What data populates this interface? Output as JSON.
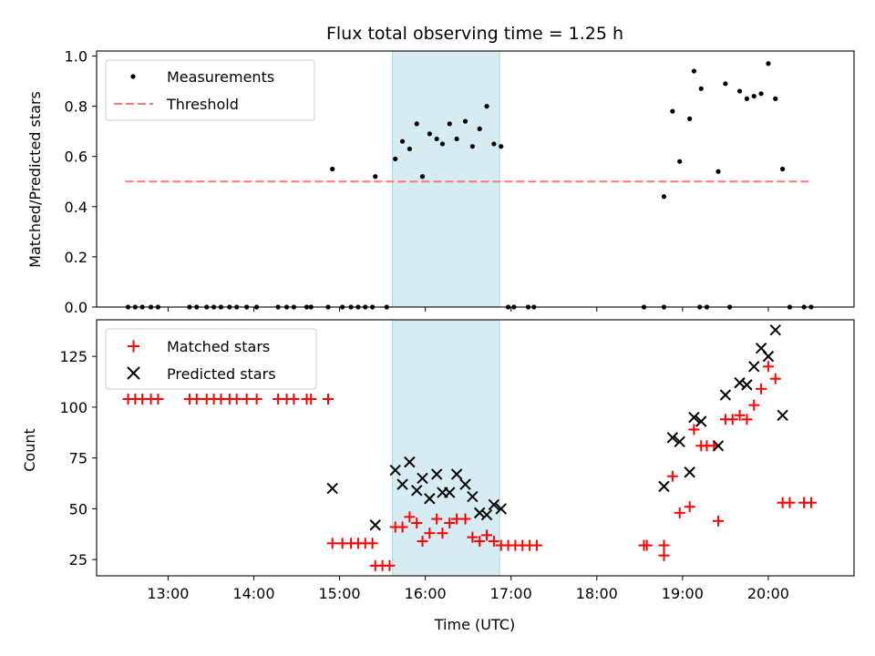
{
  "chart_data": [
    {
      "type": "scatter",
      "title": "Flux total observing time = 1.25 h",
      "xlabel": "",
      "ylabel": "Matched/Predicted stars",
      "xlim": [
        "12:10",
        "21:00"
      ],
      "ylim": [
        0,
        1.02
      ],
      "xticks": [
        "13:00",
        "14:00",
        "15:00",
        "16:00",
        "17:00",
        "18:00",
        "19:00",
        "20:00"
      ],
      "yticks": [
        "0.0",
        "0.2",
        "0.4",
        "0.6",
        "0.8",
        "1.0"
      ],
      "shaded_interval": [
        "15:37",
        "16:52"
      ],
      "legend": {
        "position": "upper-left",
        "measurements_label": "Measurements",
        "threshold_label": "Threshold"
      },
      "threshold": {
        "value": 0.5,
        "x_start": "12:30",
        "x_end": "20:30",
        "color": "#ff7777"
      },
      "series": [
        {
          "name": "Measurements",
          "color": "#000000",
          "points": [
            [
              "12:32",
              0.0
            ],
            [
              "12:37",
              0.0
            ],
            [
              "12:42",
              0.0
            ],
            [
              "12:48",
              0.0
            ],
            [
              "12:53",
              0.0
            ],
            [
              "13:15",
              0.0
            ],
            [
              "13:20",
              0.0
            ],
            [
              "13:27",
              0.0
            ],
            [
              "13:32",
              0.0
            ],
            [
              "13:37",
              0.0
            ],
            [
              "13:43",
              0.0
            ],
            [
              "13:48",
              0.0
            ],
            [
              "13:55",
              0.0
            ],
            [
              "14:02",
              0.0
            ],
            [
              "14:17",
              0.0
            ],
            [
              "14:23",
              0.0
            ],
            [
              "14:28",
              0.0
            ],
            [
              "14:37",
              0.0
            ],
            [
              "14:40",
              0.0
            ],
            [
              "14:52",
              0.0
            ],
            [
              "15:02",
              0.0
            ],
            [
              "15:08",
              0.0
            ],
            [
              "15:13",
              0.0
            ],
            [
              "15:18",
              0.0
            ],
            [
              "15:23",
              0.0
            ],
            [
              "15:33",
              0.0
            ],
            [
              "14:55",
              0.55
            ],
            [
              "15:25",
              0.52
            ],
            [
              "15:39",
              0.59
            ],
            [
              "15:44",
              0.66
            ],
            [
              "15:49",
              0.63
            ],
            [
              "15:54",
              0.73
            ],
            [
              "15:58",
              0.52
            ],
            [
              "16:03",
              0.69
            ],
            [
              "16:08",
              0.67
            ],
            [
              "16:12",
              0.65
            ],
            [
              "16:17",
              0.73
            ],
            [
              "16:22",
              0.67
            ],
            [
              "16:28",
              0.74
            ],
            [
              "16:33",
              0.64
            ],
            [
              "16:38",
              0.71
            ],
            [
              "16:43",
              0.8
            ],
            [
              "16:48",
              0.65
            ],
            [
              "16:53",
              0.64
            ],
            [
              "16:58",
              0.0
            ],
            [
              "17:02",
              0.0
            ],
            [
              "17:12",
              0.0
            ],
            [
              "17:16",
              0.0
            ],
            [
              "18:33",
              0.0
            ],
            [
              "18:47",
              0.0
            ],
            [
              "19:12",
              0.0
            ],
            [
              "19:17",
              0.0
            ],
            [
              "19:33",
              0.0
            ],
            [
              "18:47",
              0.44
            ],
            [
              "18:53",
              0.78
            ],
            [
              "18:58",
              0.58
            ],
            [
              "19:05",
              0.75
            ],
            [
              "19:08",
              0.94
            ],
            [
              "19:13",
              0.87
            ],
            [
              "19:25",
              0.54
            ],
            [
              "19:30",
              0.89
            ],
            [
              "19:40",
              0.86
            ],
            [
              "19:45",
              0.83
            ],
            [
              "19:50",
              0.84
            ],
            [
              "19:55",
              0.85
            ],
            [
              "20:00",
              0.97
            ],
            [
              "20:05",
              0.83
            ],
            [
              "20:10",
              0.55
            ],
            [
              "20:15",
              0.0
            ],
            [
              "20:25",
              0.0
            ],
            [
              "20:30",
              0.0
            ]
          ]
        }
      ]
    },
    {
      "type": "scatter",
      "title": "",
      "xlabel": "Time (UTC)",
      "ylabel": "Count",
      "xlim": [
        "12:10",
        "21:00"
      ],
      "ylim": [
        17,
        143
      ],
      "xticks": [
        "13:00",
        "14:00",
        "15:00",
        "16:00",
        "17:00",
        "18:00",
        "19:00",
        "20:00"
      ],
      "yticks": [
        "25",
        "50",
        "75",
        "100",
        "125"
      ],
      "shaded_interval": [
        "15:37",
        "16:52"
      ],
      "legend": {
        "position": "upper-left"
      },
      "series": [
        {
          "name": "Matched stars",
          "color": "#ff0000",
          "marker": "plus",
          "points": [
            [
              "12:32",
              104
            ],
            [
              "12:37",
              104
            ],
            [
              "12:42",
              104
            ],
            [
              "12:48",
              104
            ],
            [
              "12:53",
              104
            ],
            [
              "13:15",
              104
            ],
            [
              "13:20",
              104
            ],
            [
              "13:27",
              104
            ],
            [
              "13:32",
              104
            ],
            [
              "13:37",
              104
            ],
            [
              "13:43",
              104
            ],
            [
              "13:48",
              104
            ],
            [
              "13:55",
              104
            ],
            [
              "14:02",
              104
            ],
            [
              "14:17",
              104
            ],
            [
              "14:23",
              104
            ],
            [
              "14:28",
              104
            ],
            [
              "14:37",
              104
            ],
            [
              "14:40",
              104
            ],
            [
              "14:52",
              104
            ],
            [
              "14:55",
              33
            ],
            [
              "15:02",
              33
            ],
            [
              "15:08",
              33
            ],
            [
              "15:13",
              33
            ],
            [
              "15:18",
              33
            ],
            [
              "15:23",
              33
            ],
            [
              "15:25",
              22
            ],
            [
              "15:30",
              22
            ],
            [
              "15:35",
              22
            ],
            [
              "15:39",
              41
            ],
            [
              "15:44",
              41
            ],
            [
              "15:49",
              46
            ],
            [
              "15:54",
              43
            ],
            [
              "15:58",
              34
            ],
            [
              "16:03",
              38
            ],
            [
              "16:08",
              45
            ],
            [
              "16:12",
              38
            ],
            [
              "16:17",
              43
            ],
            [
              "16:22",
              45
            ],
            [
              "16:28",
              45
            ],
            [
              "16:33",
              36
            ],
            [
              "16:38",
              34
            ],
            [
              "16:43",
              37
            ],
            [
              "16:48",
              34
            ],
            [
              "16:53",
              32
            ],
            [
              "16:58",
              32
            ],
            [
              "17:03",
              32
            ],
            [
              "17:08",
              32
            ],
            [
              "17:13",
              32
            ],
            [
              "17:18",
              32
            ],
            [
              "18:33",
              32
            ],
            [
              "18:35",
              32
            ],
            [
              "18:47",
              32
            ],
            [
              "18:47",
              27
            ],
            [
              "18:53",
              66
            ],
            [
              "18:58",
              48
            ],
            [
              "19:05",
              51
            ],
            [
              "19:08",
              89
            ],
            [
              "19:13",
              81
            ],
            [
              "19:17",
              81
            ],
            [
              "19:22",
              81
            ],
            [
              "19:25",
              44
            ],
            [
              "19:30",
              94
            ],
            [
              "19:35",
              94
            ],
            [
              "19:40",
              96
            ],
            [
              "19:45",
              94
            ],
            [
              "19:50",
              101
            ],
            [
              "19:55",
              109
            ],
            [
              "20:00",
              120
            ],
            [
              "20:05",
              114
            ],
            [
              "20:10",
              53
            ],
            [
              "20:15",
              53
            ],
            [
              "20:25",
              53
            ],
            [
              "20:30",
              53
            ]
          ]
        },
        {
          "name": "Predicted stars",
          "color": "#000000",
          "marker": "x",
          "points": [
            [
              "14:55",
              60
            ],
            [
              "15:25",
              42
            ],
            [
              "15:39",
              69
            ],
            [
              "15:44",
              62
            ],
            [
              "15:49",
              73
            ],
            [
              "15:54",
              59
            ],
            [
              "15:58",
              65
            ],
            [
              "16:03",
              55
            ],
            [
              "16:08",
              67
            ],
            [
              "16:12",
              58
            ],
            [
              "16:17",
              58
            ],
            [
              "16:22",
              67
            ],
            [
              "16:28",
              62
            ],
            [
              "16:33",
              56
            ],
            [
              "16:38",
              48
            ],
            [
              "16:43",
              47
            ],
            [
              "16:48",
              52
            ],
            [
              "16:53",
              50
            ],
            [
              "18:47",
              61
            ],
            [
              "18:53",
              85
            ],
            [
              "18:58",
              83
            ],
            [
              "19:05",
              68
            ],
            [
              "19:08",
              95
            ],
            [
              "19:13",
              93
            ],
            [
              "19:25",
              81
            ],
            [
              "19:30",
              106
            ],
            [
              "19:40",
              112
            ],
            [
              "19:45",
              111
            ],
            [
              "19:50",
              120
            ],
            [
              "19:55",
              129
            ],
            [
              "20:00",
              125
            ],
            [
              "20:05",
              138
            ],
            [
              "20:10",
              96
            ]
          ]
        }
      ]
    }
  ]
}
